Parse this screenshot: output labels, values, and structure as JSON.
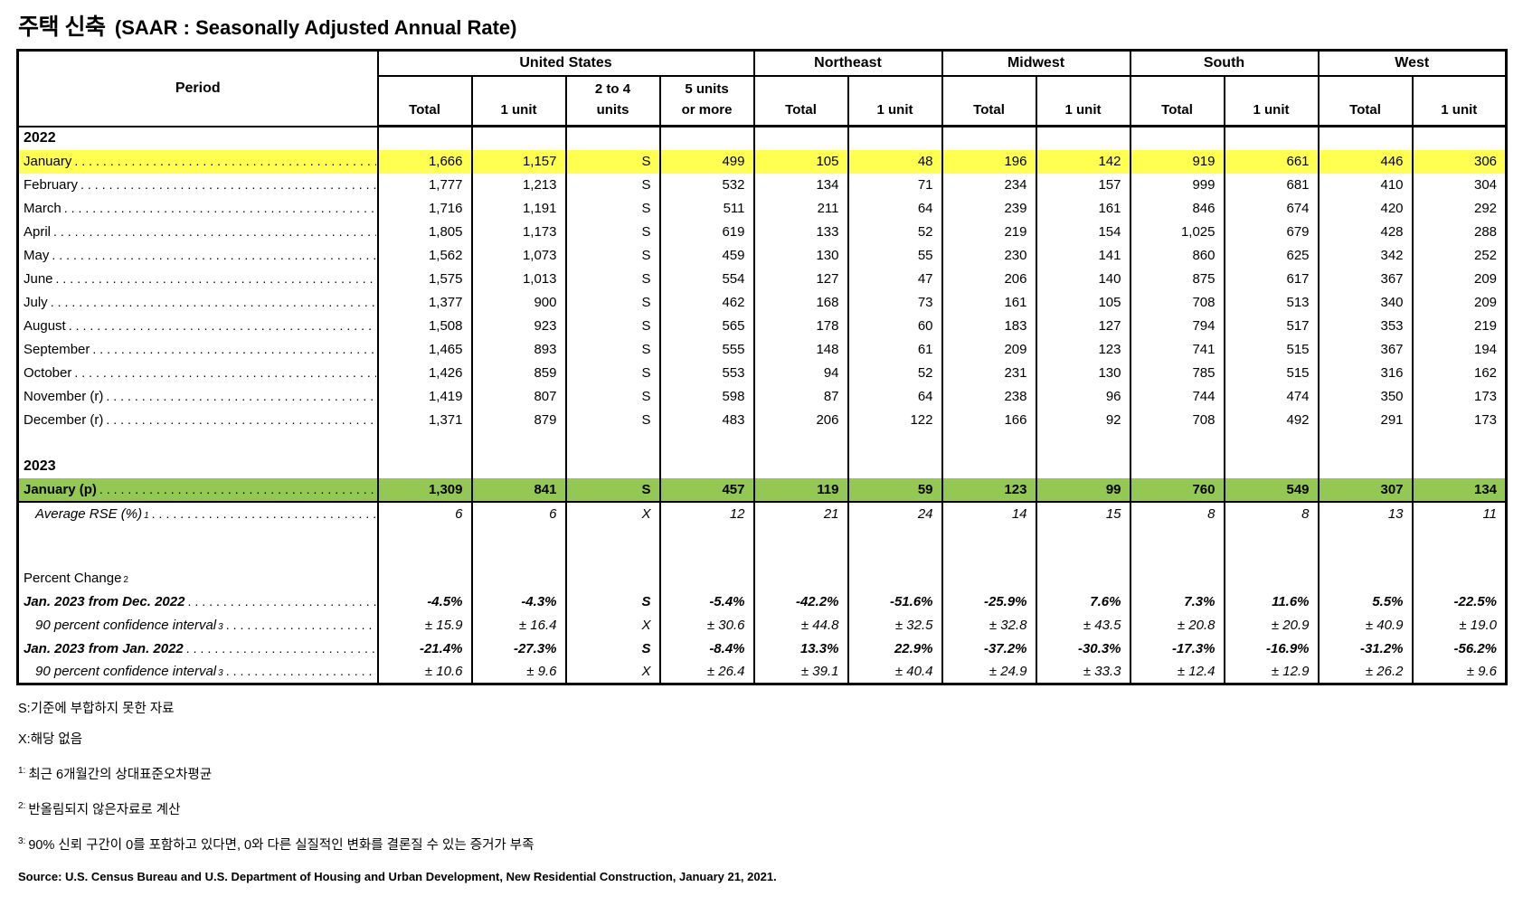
{
  "title": {
    "korean": "주택 신축",
    "english": "(SAAR : Seasonally Adjusted Annual Rate)"
  },
  "colors": {
    "highlight_yellow": "#FFFF4F",
    "highlight_green": "#93C953"
  },
  "table": {
    "period_header": "Period",
    "groups": [
      {
        "label": "United States",
        "cols": [
          "Total",
          "1 unit",
          "2 to 4\nunits",
          "5 units\nor more"
        ]
      },
      {
        "label": "Northeast",
        "cols": [
          "Total",
          "1 unit"
        ]
      },
      {
        "label": "Midwest",
        "cols": [
          "Total",
          "1 unit"
        ]
      },
      {
        "label": "South",
        "cols": [
          "Total",
          "1 unit"
        ]
      },
      {
        "label": "West",
        "cols": [
          "Total",
          "1 unit"
        ]
      }
    ],
    "rows": [
      {
        "style": "year",
        "label": "2022"
      },
      {
        "style": "month",
        "label": "January",
        "highlight": "yellow",
        "values": [
          "1,666",
          "1,157",
          "S",
          "499",
          "105",
          "48",
          "196",
          "142",
          "919",
          "661",
          "446",
          "306"
        ]
      },
      {
        "style": "month",
        "label": "February",
        "values": [
          "1,777",
          "1,213",
          "S",
          "532",
          "134",
          "71",
          "234",
          "157",
          "999",
          "681",
          "410",
          "304"
        ]
      },
      {
        "style": "month",
        "label": "March",
        "values": [
          "1,716",
          "1,191",
          "S",
          "511",
          "211",
          "64",
          "239",
          "161",
          "846",
          "674",
          "420",
          "292"
        ]
      },
      {
        "style": "month",
        "label": "April",
        "values": [
          "1,805",
          "1,173",
          "S",
          "619",
          "133",
          "52",
          "219",
          "154",
          "1,025",
          "679",
          "428",
          "288"
        ]
      },
      {
        "style": "month",
        "label": "May",
        "values": [
          "1,562",
          "1,073",
          "S",
          "459",
          "130",
          "55",
          "230",
          "141",
          "860",
          "625",
          "342",
          "252"
        ]
      },
      {
        "style": "month",
        "label": "June",
        "values": [
          "1,575",
          "1,013",
          "S",
          "554",
          "127",
          "47",
          "206",
          "140",
          "875",
          "617",
          "367",
          "209"
        ]
      },
      {
        "style": "month",
        "label": "July",
        "values": [
          "1,377",
          "900",
          "S",
          "462",
          "168",
          "73",
          "161",
          "105",
          "708",
          "513",
          "340",
          "209"
        ]
      },
      {
        "style": "month",
        "label": "August",
        "values": [
          "1,508",
          "923",
          "S",
          "565",
          "178",
          "60",
          "183",
          "127",
          "794",
          "517",
          "353",
          "219"
        ]
      },
      {
        "style": "month",
        "label": "September",
        "values": [
          "1,465",
          "893",
          "S",
          "555",
          "148",
          "61",
          "209",
          "123",
          "741",
          "515",
          "367",
          "194"
        ]
      },
      {
        "style": "month",
        "label": "October",
        "values": [
          "1,426",
          "859",
          "S",
          "553",
          "94",
          "52",
          "231",
          "130",
          "785",
          "515",
          "316",
          "162"
        ]
      },
      {
        "style": "month",
        "label": "November (r)",
        "values": [
          "1,419",
          "807",
          "S",
          "598",
          "87",
          "64",
          "238",
          "96",
          "744",
          "474",
          "350",
          "173"
        ]
      },
      {
        "style": "month",
        "label": "December (r)",
        "values": [
          "1,371",
          "879",
          "S",
          "483",
          "206",
          "122",
          "166",
          "92",
          "708",
          "492",
          "291",
          "173"
        ]
      },
      {
        "style": "blank"
      },
      {
        "style": "year",
        "label": "2023"
      },
      {
        "style": "month-bold",
        "label": "January (p)",
        "highlight": "green",
        "values": [
          "1,309",
          "841",
          "S",
          "457",
          "119",
          "59",
          "123",
          "99",
          "760",
          "549",
          "307",
          "134"
        ]
      },
      {
        "style": "italic",
        "label": "Average RSE (%)",
        "sup": "1",
        "values": [
          "6",
          "6",
          "X",
          "12",
          "21",
          "24",
          "14",
          "15",
          "8",
          "8",
          "13",
          "11"
        ]
      },
      {
        "style": "blank-tall"
      },
      {
        "style": "section",
        "label": "Percent Change",
        "sup": "2"
      },
      {
        "style": "bold-italic",
        "label": "Jan. 2023 from Dec. 2022",
        "values": [
          "-4.5%",
          "-4.3%",
          "S",
          "-5.4%",
          "-42.2%",
          "-51.6%",
          "-25.9%",
          "7.6%",
          "7.3%",
          "11.6%",
          "5.5%",
          "-22.5%"
        ]
      },
      {
        "style": "italic",
        "label": "90 percent confidence interval",
        "sup": "3",
        "values": [
          "± 15.9",
          "± 16.4",
          "X",
          "± 30.6",
          "± 44.8",
          "± 32.5",
          "± 32.8",
          "± 43.5",
          "± 20.8",
          "± 20.9",
          "± 40.9",
          "± 19.0"
        ]
      },
      {
        "style": "bold-italic",
        "label": "Jan. 2023 from Jan. 2022",
        "values": [
          "-21.4%",
          "-27.3%",
          "S",
          "-8.4%",
          "13.3%",
          "22.9%",
          "-37.2%",
          "-30.3%",
          "-17.3%",
          "-16.9%",
          "-31.2%",
          "-56.2%"
        ]
      },
      {
        "style": "italic",
        "label": "90 percent confidence interval",
        "sup": "3",
        "values": [
          "± 10.6",
          "± 9.6",
          "X",
          "± 26.4",
          "± 39.1",
          "± 40.4",
          "± 24.9",
          "± 33.3",
          "± 12.4",
          "± 12.9",
          "± 26.2",
          "± 9.6"
        ]
      }
    ]
  },
  "footnotes": [
    {
      "sup": "",
      "text": "S:기준에 부합하지 못한 자료"
    },
    {
      "sup": "",
      "text": "X:해당 없음"
    },
    {
      "sup": "1:",
      "text": "최근 6개월간의 상대표준오차평균"
    },
    {
      "sup": "2:",
      "text": "반올림되지 않은자료로 계산"
    },
    {
      "sup": "3:",
      "text": "90% 신뢰 구간이 0를 포함하고 있다면, 0와 다른 실질적인 변화를 결론질 수 있는 증거가 부족"
    }
  ],
  "source": "Source: U.S. Census Bureau and U.S. Department of Housing and Urban Development, New Residential Construction, January 21, 2021."
}
